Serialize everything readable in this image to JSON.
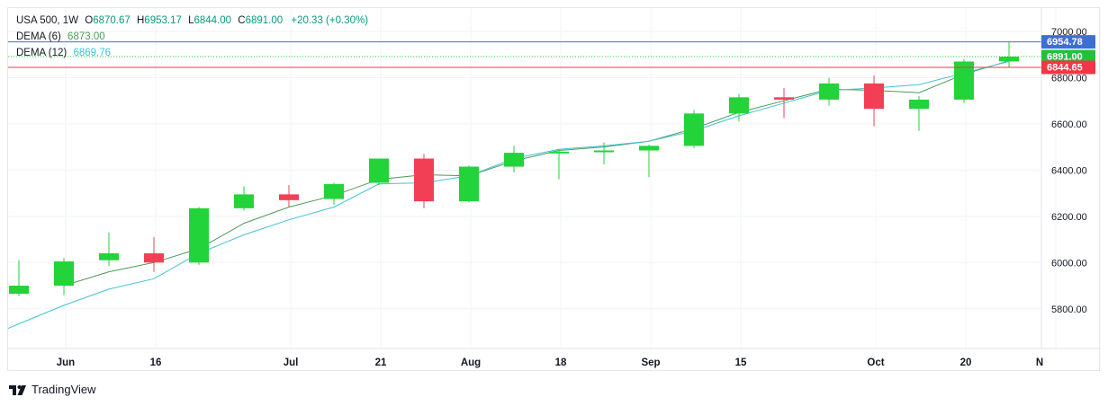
{
  "header": {
    "symbol": "USA 500",
    "interval": "1W",
    "open_label": "O",
    "open": "6870.67",
    "high_label": "H",
    "high": "6953.17",
    "low_label": "L",
    "low": "6844.00",
    "close_label": "C",
    "close": "6891.00",
    "change": "+20.33 (+0.30%)",
    "dema6_label": "DEMA (6)",
    "dema6_value": "6873.00",
    "dema12_label": "DEMA (12)",
    "dema12_value": "6869.76"
  },
  "branding": {
    "name": "TradingView"
  },
  "colors": {
    "up": "#22d43a",
    "down": "#f23f55",
    "dema6": "#4c9a59",
    "dema12": "#3fc3d6",
    "price_line": "#3c6fd4",
    "low_line": "#e53935",
    "close_line": "#27a844"
  },
  "chart_data": {
    "type": "candlestick",
    "interval": "1W",
    "ylim": [
      5650,
      7050
    ],
    "y_ticks": [
      "5800.00",
      "6000.00",
      "6200.00",
      "6400.00",
      "6600.00",
      "6800.00",
      "7000.00"
    ],
    "x_tick_labels": [
      "Jun",
      "16",
      "Jul",
      "21",
      "Aug",
      "18",
      "Sep",
      "15",
      "Oct",
      "20",
      "N"
    ],
    "price_labels": [
      {
        "label": "6954.78",
        "value": 6954.78,
        "color": "#3c6fd4"
      },
      {
        "label": "6891.00",
        "value": 6891.0,
        "color": "#22c13a"
      },
      {
        "label": "6844.65",
        "value": 6844.65,
        "color": "#f23645"
      }
    ],
    "candles": [
      {
        "open": 5865,
        "high": 6010,
        "low": 5855,
        "close": 5900
      },
      {
        "open": 5900,
        "high": 6020,
        "low": 5860,
        "close": 6005
      },
      {
        "open": 6010,
        "high": 6130,
        "low": 5985,
        "close": 6040
      },
      {
        "open": 6040,
        "high": 6110,
        "low": 5960,
        "close": 6000
      },
      {
        "open": 6000,
        "high": 6240,
        "low": 5990,
        "close": 6235
      },
      {
        "open": 6235,
        "high": 6330,
        "low": 6225,
        "close": 6295
      },
      {
        "open": 6295,
        "high": 6335,
        "low": 6240,
        "close": 6270
      },
      {
        "open": 6275,
        "high": 6345,
        "low": 6250,
        "close": 6340
      },
      {
        "open": 6345,
        "high": 6450,
        "low": 6335,
        "close": 6450
      },
      {
        "open": 6450,
        "high": 6470,
        "low": 6235,
        "close": 6265
      },
      {
        "open": 6265,
        "high": 6420,
        "low": 6260,
        "close": 6415
      },
      {
        "open": 6415,
        "high": 6505,
        "low": 6390,
        "close": 6475
      },
      {
        "open": 6475,
        "high": 6490,
        "low": 6360,
        "close": 6480
      },
      {
        "open": 6480,
        "high": 6520,
        "low": 6425,
        "close": 6485
      },
      {
        "open": 6485,
        "high": 6510,
        "low": 6370,
        "close": 6505
      },
      {
        "open": 6505,
        "high": 6660,
        "low": 6495,
        "close": 6645
      },
      {
        "open": 6645,
        "high": 6730,
        "low": 6610,
        "close": 6715
      },
      {
        "open": 6715,
        "high": 6755,
        "low": 6625,
        "close": 6705
      },
      {
        "open": 6705,
        "high": 6800,
        "low": 6680,
        "close": 6775
      },
      {
        "open": 6775,
        "high": 6810,
        "low": 6590,
        "close": 6665
      },
      {
        "open": 6665,
        "high": 6720,
        "low": 6570,
        "close": 6705
      },
      {
        "open": 6705,
        "high": 6880,
        "low": 6690,
        "close": 6870
      },
      {
        "open": 6870,
        "high": 6953,
        "low": 6844,
        "close": 6891
      }
    ],
    "series": [
      {
        "name": "DEMA (6)",
        "values": [
          null,
          5900,
          5960,
          6000,
          6060,
          6170,
          6240,
          6290,
          6360,
          6380,
          6375,
          6440,
          6485,
          6500,
          6525,
          6580,
          6650,
          6700,
          6750,
          6745,
          6735,
          6815,
          6873
        ]
      },
      {
        "name": "DEMA (12)",
        "values": [
          5735,
          5815,
          5885,
          5930,
          6040,
          6120,
          6185,
          6240,
          6340,
          6345,
          6375,
          6450,
          6490,
          6505,
          6525,
          6570,
          6635,
          6690,
          6745,
          6755,
          6770,
          6820,
          6870
        ]
      }
    ]
  }
}
